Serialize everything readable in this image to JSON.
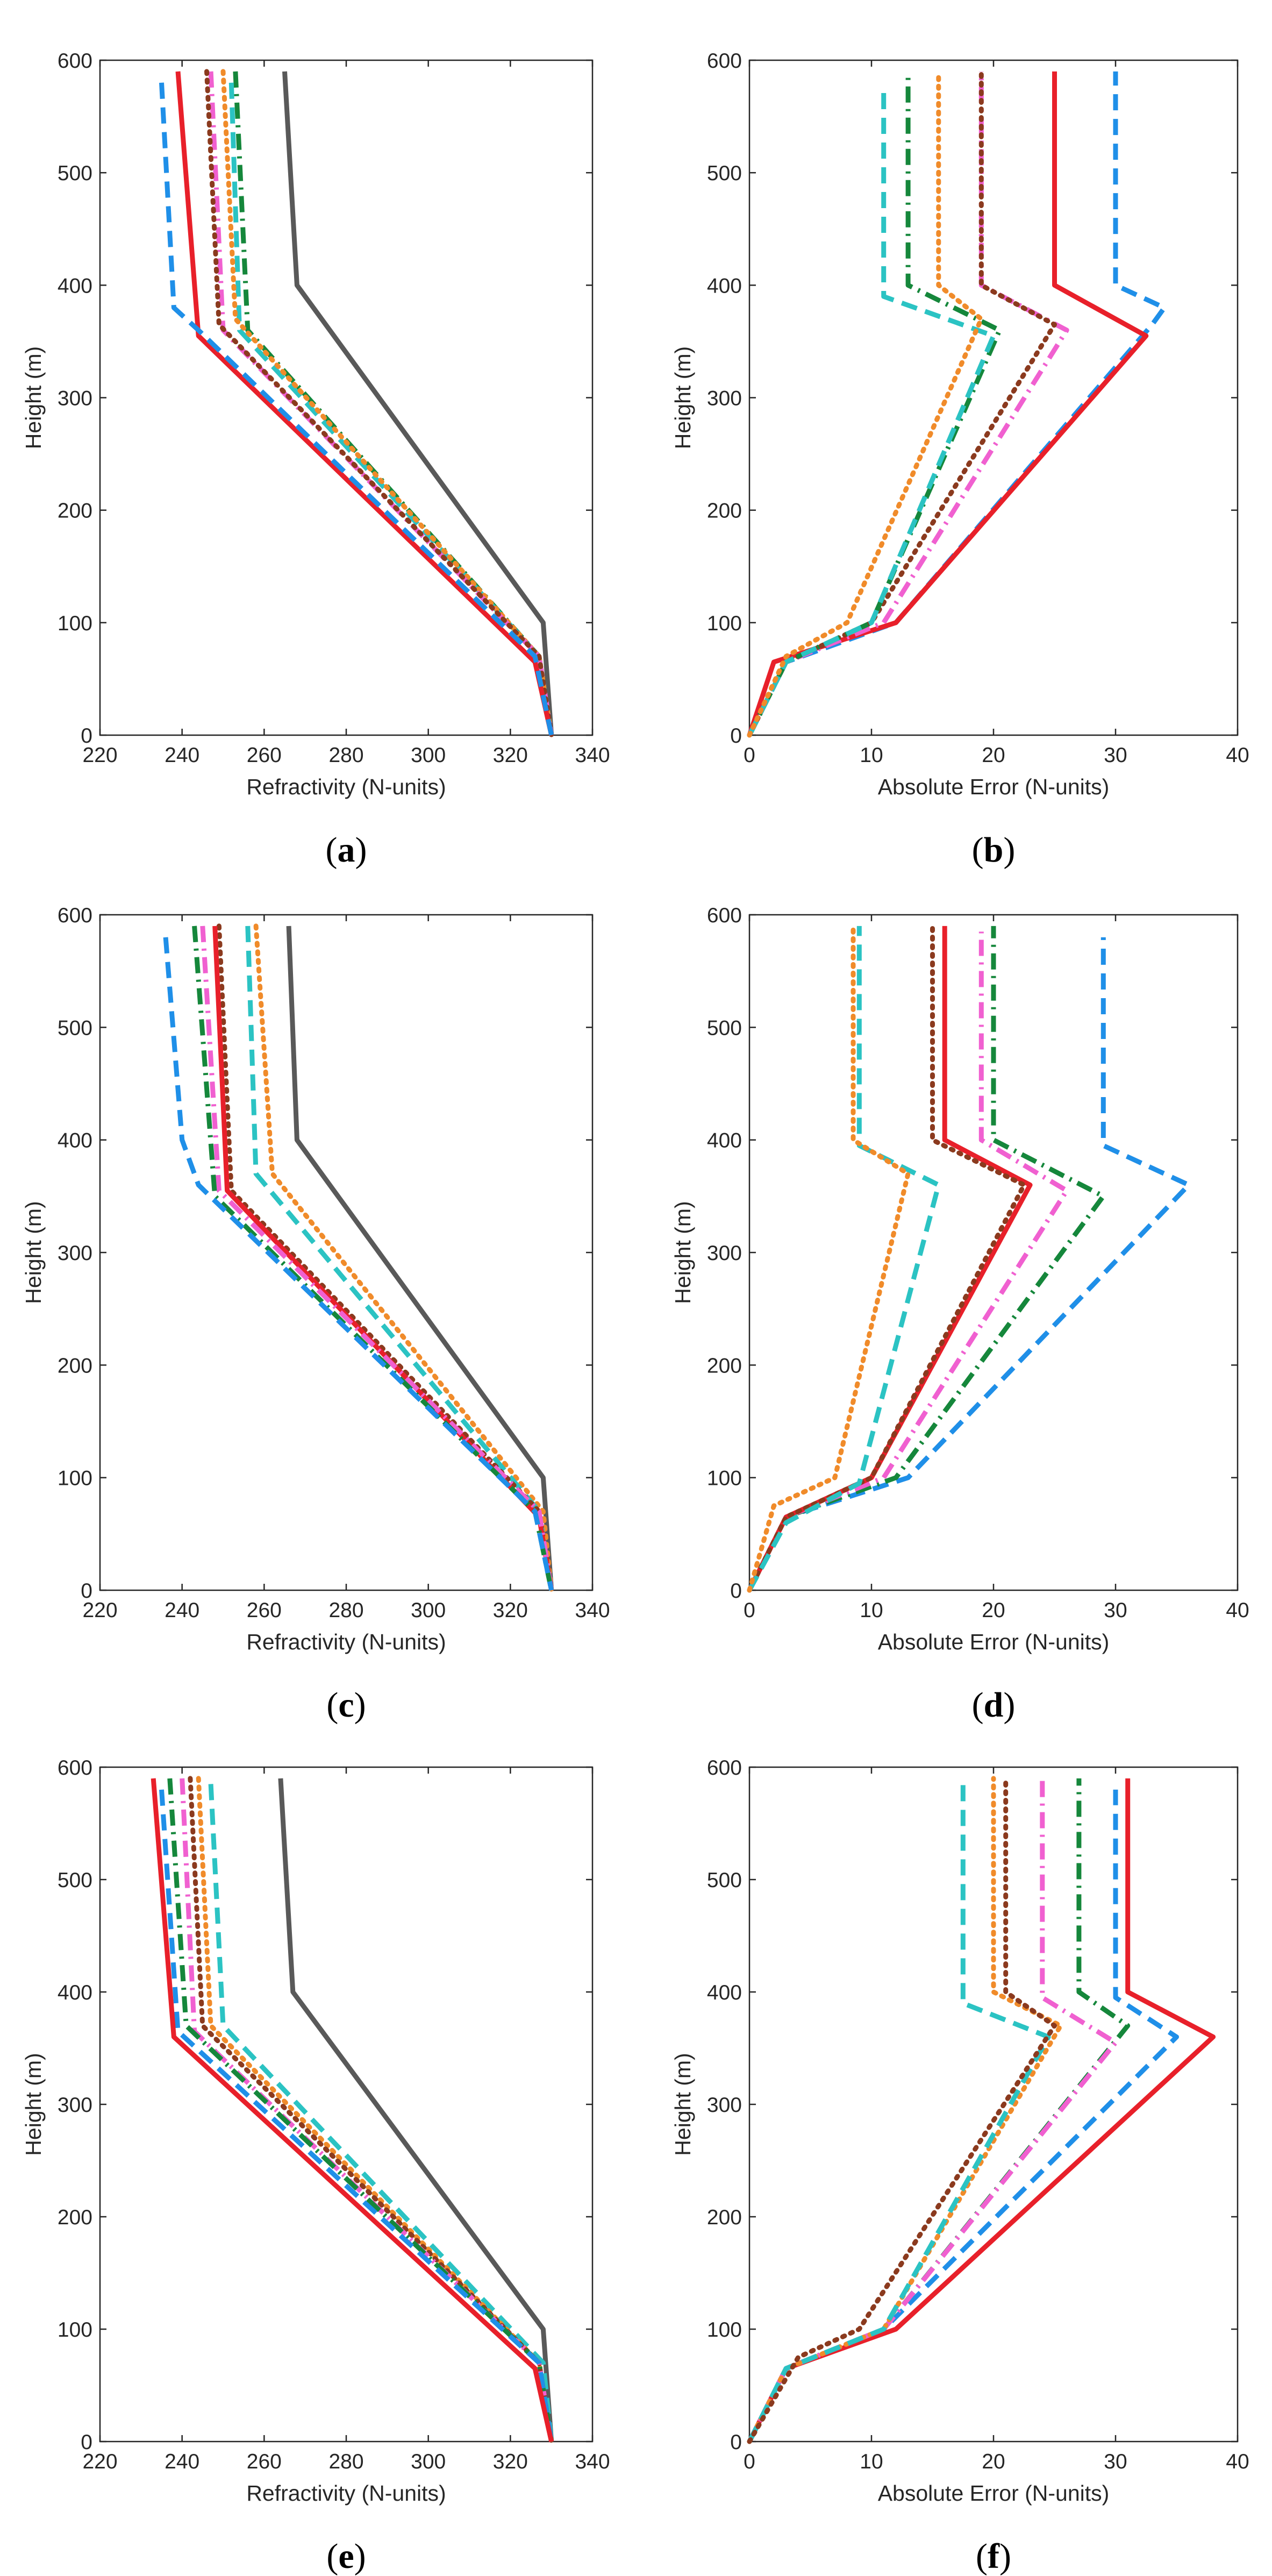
{
  "style": {
    "axis_color": "#262626",
    "line_styles": {
      "gray": {
        "color": "#595959",
        "dash": "solid"
      },
      "red": {
        "color": "#e8202a",
        "dash": "solid"
      },
      "blue": {
        "color": "#1f8fe8",
        "dash": "dash"
      },
      "brown": {
        "color": "#8b3a1e",
        "dash": "dot"
      },
      "orange": {
        "color": "#f08b2a",
        "dash": "dot"
      },
      "green": {
        "color": "#15873b",
        "dash": "dashdot"
      },
      "cyan": {
        "color": "#2bc3c3",
        "dash": "dash"
      },
      "magenta": {
        "color": "#f060d0",
        "dash": "dashdot"
      }
    }
  },
  "chart_data": [
    {
      "panel": "a",
      "type": "line",
      "xlabel": "Refractivity (N-units)",
      "ylabel": "Height (m)",
      "xlim": [
        220,
        340
      ],
      "ylim": [
        0,
        600
      ],
      "xticks": [
        220,
        240,
        260,
        280,
        300,
        320,
        340
      ],
      "yticks": [
        0,
        100,
        200,
        300,
        400,
        500,
        600
      ],
      "series": [
        {
          "name": "gray",
          "x": [
            265,
            268,
            328,
            330
          ],
          "y": [
            590,
            400,
            100,
            0
          ]
        },
        {
          "name": "green",
          "x": [
            253,
            256,
            327,
            330
          ],
          "y": [
            590,
            360,
            70,
            0
          ]
        },
        {
          "name": "cyan",
          "x": [
            252,
            254,
            327,
            330
          ],
          "y": [
            580,
            360,
            70,
            0
          ]
        },
        {
          "name": "orange",
          "x": [
            250,
            253,
            327,
            330
          ],
          "y": [
            590,
            370,
            70,
            0
          ]
        },
        {
          "name": "magenta",
          "x": [
            247,
            250,
            327,
            330
          ],
          "y": [
            590,
            360,
            70,
            0
          ]
        },
        {
          "name": "brown",
          "x": [
            246,
            249,
            327,
            330
          ],
          "y": [
            590,
            365,
            70,
            0
          ]
        },
        {
          "name": "red",
          "x": [
            239,
            244,
            326,
            330
          ],
          "y": [
            590,
            355,
            65,
            0
          ]
        },
        {
          "name": "blue",
          "x": [
            235,
            238,
            244,
            326,
            330
          ],
          "y": [
            580,
            380,
            360,
            70,
            0
          ]
        }
      ]
    },
    {
      "panel": "b",
      "type": "line",
      "xlabel": "Absolute Error (N-units)",
      "ylabel": "Height (m)",
      "xlim": [
        0,
        40
      ],
      "ylim": [
        0,
        600
      ],
      "xticks": [
        0,
        10,
        20,
        30,
        40
      ],
      "yticks": [
        0,
        100,
        200,
        300,
        400,
        500,
        600
      ],
      "series": [
        {
          "name": "blue",
          "x": [
            0,
            3,
            12,
            33,
            34,
            30,
            30
          ],
          "y": [
            0,
            65,
            100,
            365,
            380,
            400,
            590
          ]
        },
        {
          "name": "red",
          "x": [
            0,
            2,
            12,
            32.5,
            25,
            25
          ],
          "y": [
            0,
            65,
            100,
            355,
            400,
            590
          ]
        },
        {
          "name": "magenta",
          "x": [
            0,
            3,
            11,
            26,
            19,
            19
          ],
          "y": [
            0,
            65,
            100,
            360,
            400,
            590
          ]
        },
        {
          "name": "brown",
          "x": [
            0,
            3,
            10,
            25,
            19,
            19
          ],
          "y": [
            0,
            65,
            100,
            365,
            400,
            590
          ]
        },
        {
          "name": "green",
          "x": [
            0,
            3,
            10,
            20.5,
            13,
            13
          ],
          "y": [
            0,
            65,
            100,
            360,
            400,
            590
          ]
        },
        {
          "name": "cyan",
          "x": [
            0,
            3,
            10,
            20,
            11,
            11
          ],
          "y": [
            0,
            65,
            100,
            355,
            390,
            575
          ]
        },
        {
          "name": "orange",
          "x": [
            0,
            3,
            8,
            19,
            15.5,
            15.5
          ],
          "y": [
            0,
            70,
            100,
            370,
            400,
            590
          ]
        }
      ]
    },
    {
      "panel": "c",
      "type": "line",
      "xlabel": "Refractivity (N-units)",
      "ylabel": "Height (m)",
      "xlim": [
        220,
        340
      ],
      "ylim": [
        0,
        600
      ],
      "xticks": [
        220,
        240,
        260,
        280,
        300,
        320,
        340
      ],
      "yticks": [
        0,
        100,
        200,
        300,
        400,
        500,
        600
      ],
      "series": [
        {
          "name": "gray",
          "x": [
            266,
            268,
            328,
            330
          ],
          "y": [
            590,
            400,
            100,
            0
          ]
        },
        {
          "name": "orange",
          "x": [
            258,
            262,
            328,
            330
          ],
          "y": [
            590,
            370,
            70,
            0
          ]
        },
        {
          "name": "cyan",
          "x": [
            256,
            258,
            327,
            330
          ],
          "y": [
            590,
            370,
            70,
            0
          ]
        },
        {
          "name": "brown",
          "x": [
            249,
            252,
            327,
            330
          ],
          "y": [
            590,
            355,
            70,
            0
          ]
        },
        {
          "name": "red",
          "x": [
            248,
            251,
            327,
            330
          ],
          "y": [
            590,
            355,
            65,
            0
          ]
        },
        {
          "name": "magenta",
          "x": [
            245,
            249,
            327,
            330
          ],
          "y": [
            590,
            355,
            70,
            0
          ]
        },
        {
          "name": "green",
          "x": [
            243,
            248,
            326,
            330
          ],
          "y": [
            590,
            350,
            70,
            0
          ]
        },
        {
          "name": "blue",
          "x": [
            236,
            240,
            244,
            326,
            330
          ],
          "y": [
            580,
            400,
            360,
            70,
            0
          ]
        }
      ]
    },
    {
      "panel": "d",
      "type": "line",
      "xlabel": "Absolute Error (N-units)",
      "ylabel": "Height (m)",
      "xlim": [
        0,
        40
      ],
      "ylim": [
        0,
        600
      ],
      "xticks": [
        0,
        10,
        20,
        30,
        40
      ],
      "yticks": [
        0,
        100,
        200,
        300,
        400,
        500,
        600
      ],
      "series": [
        {
          "name": "blue",
          "x": [
            0,
            3,
            13,
            36,
            29,
            29
          ],
          "y": [
            0,
            65,
            100,
            360,
            395,
            580
          ]
        },
        {
          "name": "green",
          "x": [
            0,
            3,
            12,
            29,
            20,
            20
          ],
          "y": [
            0,
            65,
            100,
            350,
            400,
            590
          ]
        },
        {
          "name": "magenta",
          "x": [
            0,
            3,
            11,
            26,
            19,
            19
          ],
          "y": [
            0,
            65,
            100,
            355,
            400,
            585
          ]
        },
        {
          "name": "red",
          "x": [
            0,
            3,
            10,
            23,
            16,
            16
          ],
          "y": [
            0,
            65,
            100,
            360,
            400,
            590
          ]
        },
        {
          "name": "brown",
          "x": [
            0,
            3,
            10,
            22.5,
            15,
            15
          ],
          "y": [
            0,
            65,
            100,
            360,
            400,
            590
          ]
        },
        {
          "name": "cyan",
          "x": [
            0,
            3,
            9,
            15.5,
            9,
            9
          ],
          "y": [
            0,
            60,
            95,
            360,
            395,
            590
          ]
        },
        {
          "name": "orange",
          "x": [
            0,
            2,
            7,
            13,
            8.5,
            8.5
          ],
          "y": [
            0,
            75,
            100,
            370,
            400,
            590
          ]
        }
      ]
    },
    {
      "panel": "e",
      "type": "line",
      "xlabel": "Refractivity (N-units)",
      "ylabel": "Height (m)",
      "xlim": [
        220,
        340
      ],
      "ylim": [
        0,
        600
      ],
      "xticks": [
        220,
        240,
        260,
        280,
        300,
        320,
        340
      ],
      "yticks": [
        0,
        100,
        200,
        300,
        400,
        500,
        600
      ],
      "series": [
        {
          "name": "gray",
          "x": [
            264,
            267,
            328,
            330
          ],
          "y": [
            590,
            400,
            100,
            0
          ]
        },
        {
          "name": "cyan",
          "x": [
            247,
            250,
            328,
            330
          ],
          "y": [
            585,
            370,
            70,
            0
          ]
        },
        {
          "name": "orange",
          "x": [
            244,
            247,
            327,
            330
          ],
          "y": [
            590,
            370,
            70,
            0
          ]
        },
        {
          "name": "brown",
          "x": [
            242,
            245,
            327,
            330
          ],
          "y": [
            590,
            370,
            70,
            0
          ]
        },
        {
          "name": "magenta",
          "x": [
            240,
            243,
            327,
            330
          ],
          "y": [
            590,
            365,
            70,
            0
          ]
        },
        {
          "name": "green",
          "x": [
            237,
            241,
            327,
            330
          ],
          "y": [
            590,
            370,
            70,
            0
          ]
        },
        {
          "name": "blue",
          "x": [
            235,
            239,
            327,
            330
          ],
          "y": [
            580,
            365,
            70,
            0
          ]
        },
        {
          "name": "red",
          "x": [
            233,
            238,
            326,
            330
          ],
          "y": [
            590,
            360,
            65,
            0
          ]
        }
      ]
    },
    {
      "panel": "f",
      "type": "line",
      "xlabel": "Absolute Error (N-units)",
      "ylabel": "Height (m)",
      "xlim": [
        0,
        40
      ],
      "ylim": [
        0,
        600
      ],
      "xticks": [
        0,
        10,
        20,
        30,
        40
      ],
      "yticks": [
        0,
        100,
        200,
        300,
        400,
        500,
        600
      ],
      "series": [
        {
          "name": "red",
          "x": [
            0,
            3,
            12,
            38,
            31,
            31
          ],
          "y": [
            0,
            65,
            100,
            360,
            400,
            590
          ]
        },
        {
          "name": "blue",
          "x": [
            0,
            3,
            11,
            35,
            30,
            30
          ],
          "y": [
            0,
            65,
            100,
            360,
            395,
            580
          ]
        },
        {
          "name": "green",
          "x": [
            0,
            3,
            11,
            31,
            27,
            27
          ],
          "y": [
            0,
            65,
            100,
            370,
            400,
            590
          ]
        },
        {
          "name": "magenta",
          "x": [
            0,
            3,
            11,
            30,
            24,
            24
          ],
          "y": [
            0,
            65,
            100,
            355,
            395,
            590
          ]
        },
        {
          "name": "orange",
          "x": [
            0,
            3,
            11,
            25.5,
            20,
            20
          ],
          "y": [
            0,
            65,
            100,
            370,
            400,
            590
          ]
        },
        {
          "name": "cyan",
          "x": [
            0,
            3,
            11,
            24.5,
            17.5,
            17.5
          ],
          "y": [
            0,
            65,
            100,
            360,
            390,
            590
          ]
        },
        {
          "name": "brown",
          "x": [
            0,
            4,
            9,
            25,
            21,
            21
          ],
          "y": [
            0,
            75,
            100,
            370,
            400,
            590
          ]
        }
      ]
    }
  ]
}
